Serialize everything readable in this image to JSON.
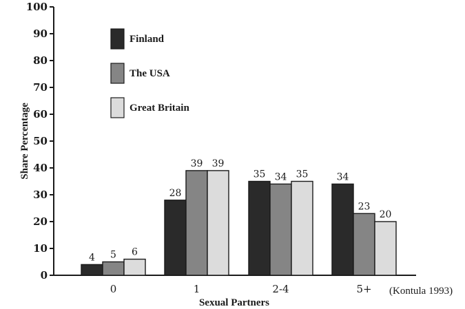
{
  "chart_data": {
    "type": "bar",
    "xlabel": "Sexual Partners",
    "ylabel": "Share Percentage",
    "ylim": [
      0,
      100
    ],
    "yticks": [
      0,
      10,
      20,
      30,
      40,
      50,
      60,
      70,
      80,
      90,
      100
    ],
    "categories": [
      "0",
      "1",
      "2-4",
      "5+"
    ],
    "series": [
      {
        "name": "Finland",
        "values": [
          4,
          28,
          35,
          34
        ],
        "color": "#2a2a2a"
      },
      {
        "name": "The USA",
        "values": [
          5,
          39,
          34,
          23
        ],
        "color": "#858585"
      },
      {
        "name": "Great Britain",
        "values": [
          6,
          39,
          35,
          20
        ],
        "color": "#dcdcdc"
      }
    ],
    "legend_position": "top-left",
    "grid": false,
    "source_note": "(Kontula 1993)"
  }
}
